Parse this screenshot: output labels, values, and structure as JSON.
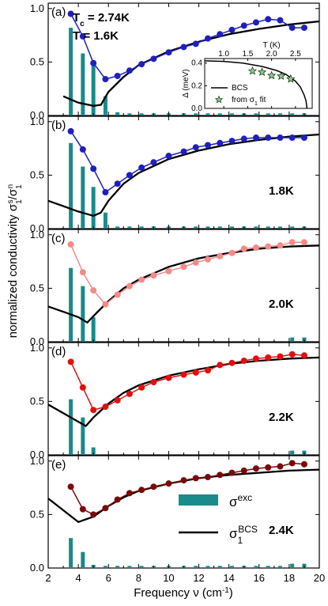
{
  "figure": {
    "ylabel_main": "normalized conductivity σ",
    "ylabel_sub1": "1",
    "ylabel_sup1": "s",
    "ylabel_slash": "/σ",
    "ylabel_sub2": "1",
    "ylabel_sup2": "n",
    "xlabel": "Frequency ν (cm",
    "xlabel_sup": "-1",
    "xlabel_end": ")",
    "tc_prefix": "T",
    "tc_sub": "c",
    "tc_value": " = 2.74K",
    "t_first": "T = 1.6K",
    "legend_exc_sym": "σ",
    "legend_exc_sup": "exc",
    "legend_bcs_sym": "σ",
    "legend_bcs_sub": "1",
    "legend_bcs_sup": "BCS"
  },
  "colors": {
    "bars": "#1a8a8a",
    "bcs": "#000000",
    "panel_a": "#1f1fbf",
    "panel_b": "#1f1fbf",
    "panel_c": "#f48a8a",
    "panel_d": "#e01010",
    "panel_e": "#7a0a0a",
    "inset_stars": "#7fd67f"
  },
  "chart_data": {
    "type": "line",
    "xlim": [
      2,
      20
    ],
    "ylim": [
      0,
      1.05
    ],
    "x_ticks": [
      2,
      4,
      6,
      8,
      10,
      12,
      14,
      16,
      18,
      20
    ],
    "y_ticks": [
      "0.0",
      "0.5",
      "1.0"
    ],
    "panels": [
      {
        "label": "(a)",
        "temperature": "",
        "data_x": [
          3.5,
          4.3,
          5.0,
          5.8,
          6.6,
          7.4,
          8.2,
          9.0,
          10.0,
          11.0,
          11.8,
          12.6,
          13.4,
          14.2,
          15.0,
          15.8,
          16.6,
          17.4,
          18.2,
          19.0
        ],
        "data_y": [
          0.95,
          0.74,
          0.49,
          0.34,
          0.37,
          0.42,
          0.48,
          0.53,
          0.59,
          0.64,
          0.67,
          0.72,
          0.76,
          0.8,
          0.84,
          0.87,
          0.9,
          0.89,
          0.82,
          0.82
        ],
        "bars_x": [
          3.5,
          4.3,
          5.0,
          5.8,
          6.6,
          7.4,
          8.2,
          9.0,
          10.0,
          11.0,
          11.8,
          12.6,
          13.4,
          14.2,
          15.0,
          15.8,
          16.6,
          17.4,
          18.2,
          19.0
        ],
        "bars_y": [
          0.82,
          0.58,
          0.49,
          0.18,
          0.03,
          0.02,
          0.02,
          0.02,
          0.02,
          0.02,
          0.02,
          0.02,
          0.02,
          0.02,
          0.02,
          0.02,
          0.02,
          0.02,
          0.02,
          0.02
        ],
        "bcs_x": [
          3.0,
          4.0,
          5.0,
          5.5,
          6.0,
          7.0,
          8.0,
          10.0,
          12.0,
          14.0,
          16.0,
          18.0,
          20.0
        ],
        "bcs_y": [
          0.18,
          0.12,
          0.09,
          0.1,
          0.22,
          0.36,
          0.47,
          0.6,
          0.69,
          0.76,
          0.81,
          0.85,
          0.88
        ]
      },
      {
        "label": "(b)",
        "temperature": "1.8K",
        "data_x": [
          3.5,
          4.3,
          5.0,
          5.8,
          6.6,
          7.4,
          8.2,
          9.0,
          10.0,
          11.0,
          11.8,
          12.6,
          13.4,
          14.2,
          15.0,
          15.8,
          16.6,
          17.4,
          18.2,
          19.0
        ],
        "data_y": [
          0.91,
          0.74,
          0.56,
          0.34,
          0.42,
          0.5,
          0.57,
          0.62,
          0.68,
          0.72,
          0.76,
          0.78,
          0.8,
          0.82,
          0.84,
          0.85,
          0.85,
          0.85,
          0.85,
          0.85
        ],
        "bars_x": [
          3.5,
          4.3,
          5.0,
          5.8,
          6.6,
          7.4,
          8.2,
          9.0,
          10.0,
          11.0,
          11.8,
          12.6,
          13.4,
          14.2,
          15.0,
          15.8,
          16.6,
          17.4,
          18.2,
          19.0
        ],
        "bars_y": [
          0.8,
          0.58,
          0.39,
          0.15,
          0.02,
          0.02,
          0.02,
          0.02,
          0.02,
          0.02,
          0.02,
          0.02,
          0.02,
          0.02,
          0.02,
          0.02,
          0.02,
          0.02,
          0.02,
          0.02
        ],
        "bcs_x": [
          2.0,
          3.0,
          4.0,
          5.0,
          5.5,
          6.0,
          7.0,
          8.0,
          10.0,
          12.0,
          14.0,
          16.0,
          18.0,
          20.0
        ],
        "bcs_y": [
          0.26,
          0.21,
          0.16,
          0.12,
          0.15,
          0.26,
          0.42,
          0.52,
          0.65,
          0.73,
          0.79,
          0.83,
          0.86,
          0.88
        ]
      },
      {
        "label": "(c)",
        "temperature": "2.0K",
        "data_x": [
          3.5,
          4.3,
          5.0,
          5.8,
          6.6,
          7.4,
          8.2,
          9.0,
          10.0,
          11.0,
          11.8,
          12.6,
          13.4,
          14.2,
          15.0,
          15.8,
          16.6,
          17.4,
          18.2,
          19.0
        ],
        "data_y": [
          0.91,
          0.65,
          0.48,
          0.35,
          0.44,
          0.52,
          0.58,
          0.62,
          0.66,
          0.7,
          0.74,
          0.77,
          0.8,
          0.83,
          0.87,
          0.88,
          0.89,
          0.9,
          0.93,
          0.93
        ],
        "bars_x": [
          3.5,
          4.3,
          5.0,
          18.2,
          19.0
        ],
        "bars_y": [
          0.69,
          0.52,
          0.23,
          0.04,
          0.04
        ],
        "bcs_x": [
          2.0,
          3.0,
          4.0,
          4.6,
          5.0,
          6.0,
          7.0,
          8.0,
          10.0,
          12.0,
          14.0,
          16.0,
          18.0,
          20.0
        ],
        "bcs_y": [
          0.33,
          0.28,
          0.23,
          0.18,
          0.24,
          0.38,
          0.5,
          0.58,
          0.7,
          0.78,
          0.83,
          0.87,
          0.89,
          0.9
        ]
      },
      {
        "label": "(d)",
        "temperature": "2.2K",
        "data_x": [
          3.5,
          4.3,
          5.0,
          5.8,
          6.6,
          7.4,
          8.2,
          9.0,
          10.0,
          11.0,
          11.8,
          12.6,
          13.4,
          14.2,
          15.0,
          15.8,
          16.6,
          17.4,
          18.2,
          19.0
        ],
        "data_y": [
          0.87,
          0.63,
          0.42,
          0.45,
          0.51,
          0.57,
          0.63,
          0.68,
          0.72,
          0.75,
          0.77,
          0.79,
          0.84,
          0.86,
          0.88,
          0.9,
          0.91,
          0.92,
          0.94,
          0.93
        ],
        "bars_x": [
          3.5,
          4.3,
          5.0,
          18.2,
          19.0
        ],
        "bars_y": [
          0.52,
          0.35,
          0.07,
          0.04,
          0.04
        ],
        "bcs_x": [
          2.0,
          3.0,
          4.0,
          4.5,
          5.0,
          6.0,
          7.0,
          8.0,
          10.0,
          12.0,
          14.0,
          16.0,
          18.0,
          20.0
        ],
        "bcs_y": [
          0.47,
          0.39,
          0.31,
          0.27,
          0.35,
          0.48,
          0.58,
          0.65,
          0.74,
          0.8,
          0.85,
          0.88,
          0.9,
          0.91
        ]
      },
      {
        "label": "(e)",
        "temperature": "2.4K",
        "data_x": [
          3.5,
          4.3,
          5.0,
          5.8,
          6.6,
          7.4,
          8.2,
          9.0,
          10.0,
          11.0,
          11.8,
          12.6,
          13.4,
          14.2,
          15.0,
          15.8,
          16.6,
          17.4,
          18.2,
          19.0
        ],
        "data_y": [
          0.76,
          0.55,
          0.5,
          0.56,
          0.64,
          0.7,
          0.73,
          0.76,
          0.79,
          0.82,
          0.84,
          0.85,
          0.87,
          0.89,
          0.91,
          0.93,
          0.94,
          0.95,
          0.98,
          0.97
        ],
        "bars_x": [
          3.5,
          4.3,
          5.0,
          5.8,
          6.6,
          7.4,
          8.2,
          9.0,
          10.0,
          11.0,
          11.8,
          12.6,
          13.4,
          14.2,
          15.0,
          15.8,
          16.6,
          17.4,
          18.2,
          19.0
        ],
        "bars_y": [
          0.28,
          0.15,
          0.03,
          0.02,
          0.02,
          0.02,
          0.02,
          0.02,
          0.02,
          0.02,
          0.02,
          0.02,
          0.02,
          0.02,
          0.02,
          0.02,
          0.02,
          0.02,
          0.04,
          0.04
        ],
        "bcs_x": [
          2.0,
          3.0,
          4.0,
          5.0,
          6.0,
          7.0,
          8.0,
          10.0,
          12.0,
          14.0,
          16.0,
          18.0,
          20.0
        ],
        "bcs_y": [
          0.65,
          0.54,
          0.43,
          0.48,
          0.58,
          0.66,
          0.72,
          0.79,
          0.84,
          0.87,
          0.89,
          0.91,
          0.92
        ]
      }
    ],
    "inset": {
      "xlabel": "T (K)",
      "ylabel": "Δ (meV)",
      "x_ticks": [
        "1.0",
        "1.5",
        "2.0",
        "2.5"
      ],
      "y_ticks": [
        "0.0",
        "0.2",
        "0.4"
      ],
      "xlim": [
        0.6,
        2.85
      ],
      "ylim": [
        0,
        0.44
      ],
      "legend_bcs": "BCS",
      "legend_fit": "from σ",
      "legend_fit_sub": "1",
      "legend_fit_end": " fit",
      "bcs_x": [
        0.6,
        1.0,
        1.4,
        1.8,
        2.1,
        2.3,
        2.5,
        2.6,
        2.68,
        2.72,
        2.74
      ],
      "bcs_y": [
        0.42,
        0.415,
        0.4,
        0.37,
        0.335,
        0.3,
        0.24,
        0.19,
        0.12,
        0.07,
        0.0
      ],
      "points_x": [
        1.6,
        1.8,
        2.0,
        2.2,
        2.4
      ],
      "points_y": [
        0.33,
        0.32,
        0.29,
        0.285,
        0.26
      ]
    }
  }
}
